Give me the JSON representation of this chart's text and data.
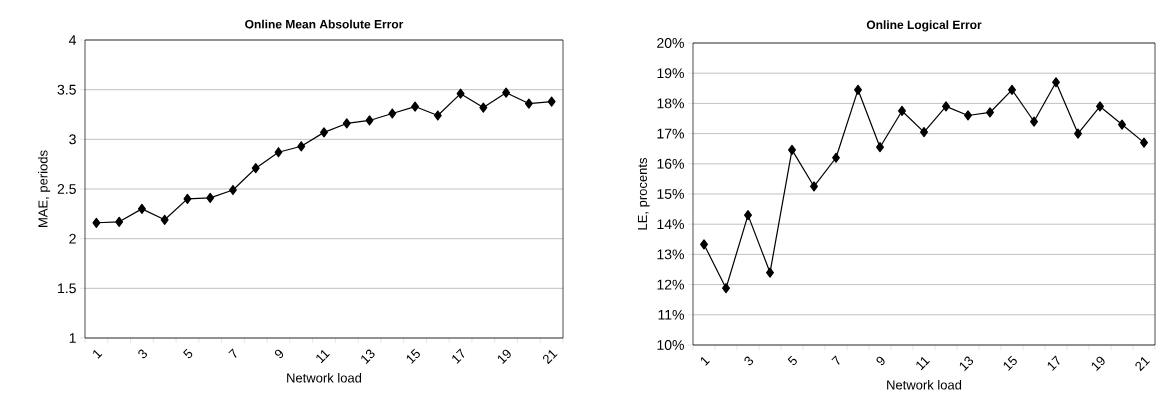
{
  "chart_data": [
    {
      "type": "line",
      "title": "Online Mean Absolute Error",
      "xlabel": "Network load",
      "ylabel": "MAE, periods",
      "categories": [
        "1",
        null,
        "3",
        null,
        "5",
        null,
        "7",
        null,
        "9",
        null,
        "11",
        null,
        "13",
        null,
        "15",
        null,
        "17",
        null,
        "19",
        null,
        "21"
      ],
      "values": [
        2.16,
        2.17,
        2.3,
        2.19,
        2.4,
        2.41,
        2.49,
        2.71,
        2.87,
        2.93,
        3.07,
        3.16,
        3.19,
        3.26,
        3.33,
        3.24,
        3.46,
        3.32,
        3.47,
        3.36,
        3.38
      ],
      "color": "#000000",
      "marker": "diamond",
      "grid": "y",
      "ylim": [
        1,
        4
      ],
      "yticks": [
        1,
        1.5,
        2,
        2.5,
        3,
        3.5,
        4
      ]
    },
    {
      "type": "line",
      "title": "Online Logical Error",
      "xlabel": "Network load",
      "ylabel": "LE, procents",
      "categories": [
        "1",
        null,
        "3",
        null,
        "5",
        null,
        "7",
        null,
        "9",
        null,
        "11",
        null,
        "13",
        null,
        "15",
        null,
        "17",
        null,
        "19",
        null,
        "21"
      ],
      "values": [
        13.33,
        11.88,
        14.3,
        12.4,
        16.46,
        15.25,
        16.2,
        18.45,
        16.55,
        17.75,
        17.05,
        17.9,
        17.6,
        17.7,
        18.45,
        17.4,
        18.7,
        17.0,
        17.9,
        17.3,
        16.7
      ],
      "color": "#000000",
      "marker": "diamond",
      "grid": "y",
      "ylim": [
        10,
        20
      ],
      "yticks": [
        {
          "value": 10,
          "label": "10%"
        },
        {
          "value": 11,
          "label": "11%"
        },
        {
          "value": 12,
          "label": "12%"
        },
        {
          "value": 13,
          "label": "13%"
        },
        {
          "value": 14,
          "label": "14%"
        },
        {
          "value": 15,
          "label": "15%"
        },
        {
          "value": 16,
          "label": "16%"
        },
        {
          "value": 17,
          "label": "17%"
        },
        {
          "value": 18,
          "label": "18%"
        },
        {
          "value": 19,
          "label": "19%"
        },
        {
          "value": 20,
          "label": "20%"
        }
      ]
    }
  ]
}
